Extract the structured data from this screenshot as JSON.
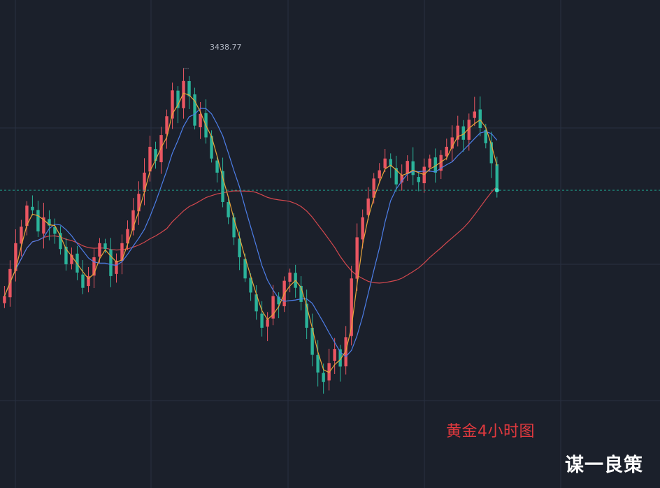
{
  "chart_data": {
    "type": "candlestick",
    "title": "",
    "caption": "黄金4小时图",
    "watermark": "谋一良策",
    "high_marker_label": "3438.77",
    "y_range_units": "price (USD/oz)",
    "ylim": [
      3140,
      3460
    ],
    "grid": true,
    "last_price": 3335,
    "colors": {
      "background": "#1b202b",
      "grid": "#283040",
      "up": "#ea5662",
      "down": "#2bb39a",
      "ma_fast": "#e7a53a",
      "ma_mid": "#4d7ee8",
      "ma_slow": "#d5484e",
      "last_price_line": "#1f9e8b",
      "caption": "#e0393e",
      "watermark": "#ffffff"
    },
    "closes": [
      3245,
      3268,
      3290,
      3304,
      3322,
      3318,
      3300,
      3312,
      3305,
      3298,
      3285,
      3272,
      3280,
      3265,
      3252,
      3262,
      3278,
      3290,
      3285,
      3262,
      3275,
      3290,
      3302,
      3318,
      3332,
      3350,
      3372,
      3360,
      3382,
      3398,
      3420,
      3405,
      3428,
      3415,
      3390,
      3400,
      3380,
      3362,
      3350,
      3325,
      3312,
      3295,
      3278,
      3260,
      3248,
      3232,
      3218,
      3225,
      3245,
      3238,
      3258,
      3265,
      3252,
      3240,
      3218,
      3195,
      3180,
      3172,
      3188,
      3200,
      3185,
      3210,
      3260,
      3295,
      3312,
      3328,
      3345,
      3352,
      3362,
      3355,
      3340,
      3348,
      3360,
      3348,
      3342,
      3355,
      3362,
      3350,
      3365,
      3372,
      3380,
      3390,
      3378,
      3395,
      3402,
      3388,
      3375,
      3358,
      3335
    ]
  }
}
